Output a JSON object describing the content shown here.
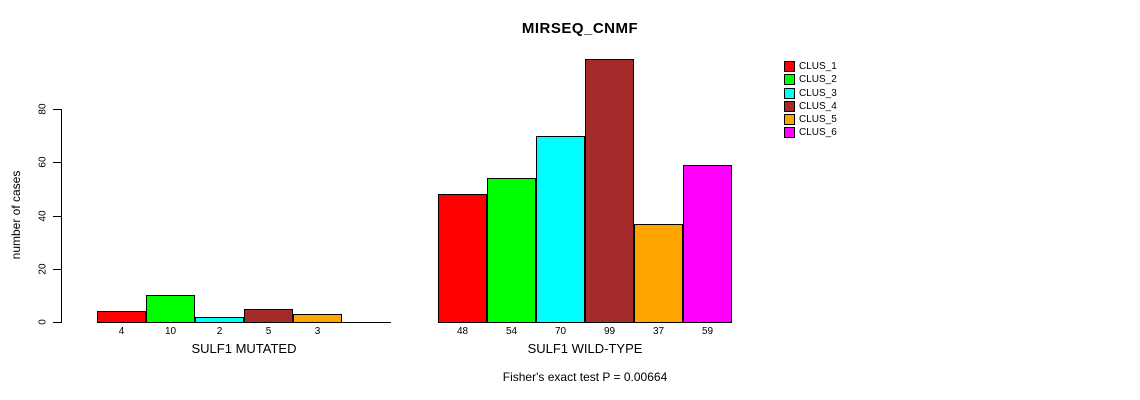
{
  "title": "MIRSEQ_CNMF",
  "chart_data": {
    "type": "bar",
    "title": "MIRSEQ_CNMF",
    "xlabel": "",
    "ylabel": "number of cases",
    "yticks": [
      0,
      20,
      40,
      60,
      80
    ],
    "ylim": [
      0,
      99
    ],
    "grid": false,
    "legend_position": "right",
    "series_names": [
      "CLUS_1",
      "CLUS_2",
      "CLUS_3",
      "CLUS_4",
      "CLUS_5",
      "CLUS_6"
    ],
    "series_colors": [
      "#ff0000",
      "#00ff00",
      "#00ffff",
      "#a52a2a",
      "#ffa500",
      "#ff00ff"
    ],
    "groups": [
      {
        "label": "SULF1 MUTATED",
        "values": [
          4,
          10,
          2,
          5,
          3,
          0
        ],
        "bar_labels": [
          "4",
          "10",
          "2",
          "5",
          "3",
          ""
        ]
      },
      {
        "label": "SULF1 WILD-TYPE",
        "values": [
          48,
          54,
          70,
          99,
          37,
          59
        ],
        "bar_labels": [
          "48",
          "54",
          "70",
          "99",
          "37",
          "59"
        ]
      }
    ],
    "annotation": "Fisher's exact test P = 0.00664"
  },
  "legend": {
    "items": [
      {
        "label": "CLUS_1",
        "color": "#ff0000"
      },
      {
        "label": "CLUS_2",
        "color": "#00ff00"
      },
      {
        "label": "CLUS_3",
        "color": "#00ffff"
      },
      {
        "label": "CLUS_4",
        "color": "#a52a2a"
      },
      {
        "label": "CLUS_5",
        "color": "#ffa500"
      },
      {
        "label": "CLUS_6",
        "color": "#ff00ff"
      }
    ]
  }
}
